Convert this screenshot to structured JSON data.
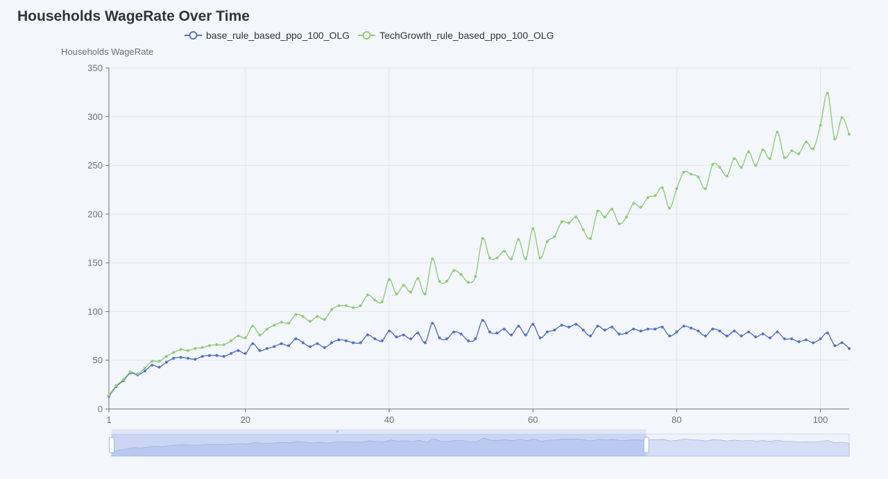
{
  "chart_data": {
    "type": "line",
    "title": "Households WageRate Over Time",
    "ylabel": "Households WageRate",
    "xlabel": "",
    "xlim": [
      1,
      104
    ],
    "ylim": [
      0,
      350
    ],
    "x_ticks": [
      1,
      20,
      40,
      60,
      80,
      100
    ],
    "y_ticks": [
      0,
      50,
      100,
      150,
      200,
      250,
      300,
      350
    ],
    "grid": true,
    "legend_position": "top",
    "series": [
      {
        "name": "base_rule_based_ppo_100_OLG",
        "color": "#5470c6",
        "values": [
          13,
          23,
          29,
          37,
          35,
          39,
          45,
          43,
          48,
          52,
          53,
          52,
          51,
          54,
          55,
          55,
          54,
          57,
          60,
          57,
          67,
          60,
          62,
          64,
          67,
          65,
          72,
          68,
          64,
          67,
          63,
          68,
          71,
          70,
          68,
          68,
          76,
          72,
          70,
          80,
          74,
          76,
          72,
          78,
          68,
          88,
          73,
          72,
          79,
          77,
          70,
          72,
          91,
          79,
          78,
          82,
          76,
          85,
          76,
          87,
          73,
          79,
          81,
          86,
          84,
          87,
          81,
          75,
          85,
          81,
          84,
          77,
          78,
          82,
          80,
          82,
          82,
          84,
          75,
          79,
          85,
          83,
          80,
          75,
          82,
          80,
          75,
          80,
          75,
          79,
          74,
          77,
          73,
          79,
          72,
          72,
          69,
          71,
          68,
          72,
          78,
          65,
          68,
          62
        ]
      },
      {
        "name": "TechGrowth_rule_based_ppo_100_OLG",
        "color": "#91cc75",
        "values": [
          14,
          24,
          30,
          38,
          36,
          42,
          49,
          49,
          54,
          58,
          61,
          60,
          62,
          63,
          65,
          66,
          66,
          70,
          75,
          73,
          85,
          76,
          82,
          86,
          89,
          88,
          97,
          95,
          90,
          95,
          92,
          102,
          106,
          106,
          104,
          106,
          117,
          112,
          110,
          133,
          118,
          127,
          120,
          134,
          118,
          154,
          131,
          131,
          142,
          138,
          130,
          136,
          175,
          155,
          155,
          162,
          154,
          174,
          154,
          185,
          155,
          172,
          177,
          192,
          191,
          197,
          184,
          175,
          203,
          197,
          205,
          190,
          197,
          211,
          207,
          217,
          219,
          227,
          206,
          226,
          243,
          241,
          238,
          226,
          251,
          248,
          239,
          257,
          248,
          264,
          250,
          266,
          257,
          284,
          258,
          265,
          262,
          274,
          267,
          291,
          324,
          277,
          299,
          282
        ]
      }
    ],
    "zoom_slider": {
      "start": 0,
      "end": 0.725
    }
  }
}
